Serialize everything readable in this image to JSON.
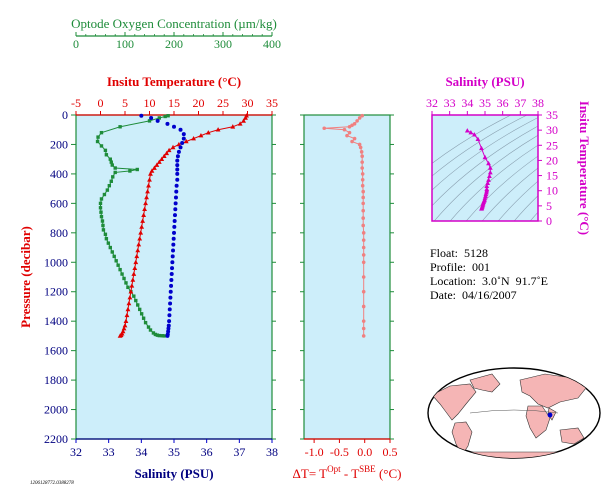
{
  "colors": {
    "panel_bg": "#cdeefa",
    "oxygen": "#1e8c3a",
    "temperature": "#e00000",
    "salinity": "#0000cc",
    "dt": "#f08080",
    "ts": "#d400c8",
    "axis_blue": "#000080",
    "grid_frame": "#1e8c3a"
  },
  "main_panel": {
    "ylabel": "Pressure (decibar)",
    "oxygen_title": "Optode Oxygen Concentration (µm/kg)",
    "temperature_title": "Insitu Temperature (°C)",
    "salinity_title": "Salinity (PSU)",
    "pressure_ticks": [
      "0",
      "200",
      "400",
      "600",
      "800",
      "1000",
      "1200",
      "1400",
      "1600",
      "1800",
      "2000",
      "2200"
    ],
    "oxygen_ticks": [
      "0",
      "100",
      "200",
      "300",
      "400"
    ],
    "temperature_ticks": [
      "-5",
      "0",
      "5",
      "10",
      "15",
      "20",
      "25",
      "30",
      "35"
    ],
    "salinity_ticks": [
      "32",
      "33",
      "34",
      "35",
      "36",
      "37",
      "38"
    ]
  },
  "dt_panel": {
    "xlabel_prefix": "ΔT= T",
    "xlabel_sup1": "Opt",
    "xlabel_mid": " - T",
    "xlabel_sup2": "SBE",
    "xlabel_suffix": " (°C)",
    "ticks": [
      "-1.0",
      "-0.5",
      "0.0",
      "0.5"
    ]
  },
  "ts_panel": {
    "title": "Salinity (PSU)",
    "ylabel": "Insitu Temperature (°C)",
    "salinity_ticks": [
      "32",
      "33",
      "34",
      "35",
      "36",
      "37",
      "38"
    ],
    "temperature_ticks": [
      "0",
      "5",
      "10",
      "15",
      "20",
      "25",
      "30",
      "35"
    ]
  },
  "float_info": {
    "float_line": "Float:  5128",
    "profile_line": "Profile:  001",
    "location_line": "Location:  3.0˚N  91.7˚E",
    "date_line": "Date:  04/16/2007"
  },
  "footer_id": "1206128772.0388278",
  "chart_data": [
    {
      "type": "line",
      "title": "Optode Oxygen Concentration (µm/kg)",
      "xlabel": "Optode Oxygen Concentration (µm/kg)",
      "ylabel": "Pressure (decibar)",
      "xlim": [
        0,
        400
      ],
      "ylim": [
        2200,
        0
      ],
      "series": [
        {
          "name": "Oxygen",
          "x": [
            188,
            182,
            170,
            150,
            90,
            52,
            45,
            44,
            52,
            60,
            62,
            70,
            72,
            74,
            80,
            125,
            110,
            80,
            75,
            72,
            68,
            64,
            58,
            52,
            50,
            50,
            51,
            52,
            54,
            55,
            56,
            60,
            62,
            66,
            70,
            74,
            78,
            82,
            86,
            90,
            94,
            98,
            102,
            106,
            112,
            118,
            122,
            126,
            130,
            134,
            138,
            142,
            148,
            152,
            158,
            162,
            166,
            170,
            176,
            180
          ],
          "y": [
            5,
            10,
            20,
            40,
            80,
            120,
            150,
            180,
            210,
            240,
            270,
            300,
            320,
            340,
            360,
            370,
            380,
            390,
            420,
            450,
            480,
            510,
            540,
            570,
            600,
            630,
            660,
            690,
            720,
            750,
            780,
            810,
            840,
            870,
            900,
            930,
            960,
            990,
            1020,
            1050,
            1080,
            1110,
            1140,
            1170,
            1200,
            1230,
            1260,
            1290,
            1320,
            1350,
            1380,
            1410,
            1440,
            1460,
            1480,
            1490,
            1495,
            1498,
            1499,
            1500
          ]
        }
      ]
    },
    {
      "type": "line",
      "title": "Insitu Temperature (°C)",
      "xlabel": "Insitu Temperature (°C)",
      "ylabel": "Pressure (decibar)",
      "xlim": [
        -5,
        35
      ],
      "ylim": [
        2200,
        0
      ],
      "series": [
        {
          "name": "Temperature",
          "x": [
            29.8,
            29.6,
            29.2,
            28.5,
            27,
            24,
            22,
            20.5,
            19,
            17.5,
            16,
            14.8,
            14,
            13.5,
            13,
            12.5,
            12,
            11.5,
            11,
            10.5,
            10.2,
            10,
            9.8,
            9.6,
            9.4,
            9.2,
            9.0,
            8.8,
            8.6,
            8.4,
            8.2,
            8.0,
            7.8,
            7.6,
            7.4,
            7.2,
            7.0,
            6.8,
            6.6,
            6.4,
            6.2,
            6.0,
            5.8,
            5.6,
            5.4,
            5.2,
            5.0,
            4.8,
            4.6,
            4.4,
            4.2,
            4.0
          ],
          "y": [
            5,
            20,
            40,
            60,
            80,
            100,
            120,
            140,
            160,
            180,
            200,
            220,
            240,
            260,
            280,
            300,
            320,
            340,
            360,
            380,
            400,
            440,
            480,
            520,
            560,
            600,
            640,
            680,
            720,
            760,
            800,
            840,
            880,
            920,
            960,
            1000,
            1040,
            1080,
            1120,
            1160,
            1200,
            1240,
            1280,
            1320,
            1360,
            1400,
            1430,
            1450,
            1470,
            1485,
            1495,
            1500
          ]
        }
      ]
    },
    {
      "type": "line",
      "title": "Salinity (PSU)",
      "xlabel": "Salinity (PSU)",
      "ylabel": "Pressure (decibar)",
      "xlim": [
        32,
        38
      ],
      "ylim": [
        2200,
        0
      ],
      "series": [
        {
          "name": "Salinity",
          "x": [
            34.0,
            34.3,
            34.5,
            34.8,
            35.0,
            35.2,
            35.3,
            35.3,
            35.25,
            35.2,
            35.15,
            35.12,
            35.1,
            35.1,
            35.1,
            35.1,
            35.1,
            35.08,
            35.07,
            35.06,
            35.05,
            35.04,
            35.03,
            35.02,
            35.01,
            35.0,
            34.99,
            34.98,
            34.97,
            34.96,
            34.95,
            34.94,
            34.93,
            34.92,
            34.91,
            34.9,
            34.89,
            34.88,
            34.87,
            34.86,
            34.85,
            34.84,
            34.83,
            34.82,
            34.81,
            34.8
          ],
          "y": [
            5,
            20,
            40,
            60,
            80,
            100,
            130,
            160,
            190,
            220,
            250,
            280,
            310,
            340,
            370,
            400,
            440,
            480,
            520,
            560,
            600,
            640,
            680,
            720,
            760,
            800,
            840,
            880,
            920,
            960,
            1000,
            1040,
            1080,
            1120,
            1160,
            1200,
            1240,
            1280,
            1320,
            1360,
            1400,
            1430,
            1450,
            1470,
            1490,
            1500
          ]
        }
      ]
    },
    {
      "type": "line",
      "title": "ΔT= T Opt - T SBE (°C)",
      "xlabel": "ΔT= T Opt - T SBE (°C)",
      "ylabel": "Pressure (decibar)",
      "xlim": [
        -1.2,
        0.5
      ],
      "ylim": [
        2200,
        0
      ],
      "series": [
        {
          "name": "ΔT",
          "x": [
            -0.05,
            -0.1,
            -0.15,
            -0.2,
            -0.25,
            -0.3,
            -0.8,
            -0.4,
            -0.3,
            -0.35,
            -0.2,
            -0.25,
            -0.1,
            -0.08,
            -0.06,
            -0.05,
            -0.05,
            -0.05,
            -0.04,
            -0.04,
            -0.04,
            -0.03,
            -0.03,
            -0.03,
            -0.03,
            -0.03,
            -0.03,
            -0.02,
            -0.02,
            -0.02,
            -0.02,
            -0.02,
            -0.02,
            -0.02,
            -0.02,
            -0.02,
            -0.02,
            -0.02
          ],
          "y": [
            5,
            20,
            40,
            60,
            70,
            80,
            90,
            100,
            120,
            140,
            160,
            180,
            200,
            220,
            250,
            280,
            320,
            360,
            400,
            440,
            480,
            520,
            560,
            600,
            650,
            700,
            750,
            800,
            850,
            900,
            950,
            1000,
            1100,
            1200,
            1300,
            1400,
            1450,
            1500
          ]
        }
      ]
    },
    {
      "type": "scatter",
      "title": "Salinity (PSU)",
      "xlabel": "Salinity (PSU)",
      "ylabel": "Insitu Temperature (°C)",
      "xlim": [
        32,
        38
      ],
      "ylim": [
        0,
        35
      ],
      "series": [
        {
          "name": "T-S",
          "x": [
            34.0,
            34.2,
            34.4,
            34.6,
            34.8,
            35.0,
            35.2,
            35.3,
            35.3,
            35.25,
            35.2,
            35.15,
            35.1,
            35.1,
            35.1,
            35.08,
            35.05,
            35.03,
            35.0,
            34.98,
            34.95,
            34.92,
            34.9,
            34.88,
            34.86,
            34.84,
            34.82,
            34.8
          ],
          "y": [
            29.8,
            29.2,
            28.5,
            27,
            24,
            21,
            19,
            17.5,
            16,
            14.8,
            13.5,
            12.5,
            11.5,
            10.5,
            10,
            9.4,
            8.8,
            8.2,
            7.6,
            7.0,
            6.6,
            6.2,
            5.8,
            5.4,
            5.0,
            4.6,
            4.2,
            4.0
          ]
        }
      ]
    }
  ]
}
